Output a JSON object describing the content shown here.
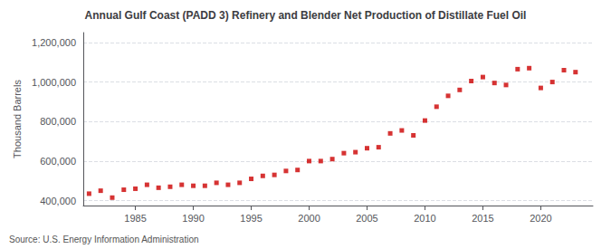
{
  "chart_data": {
    "type": "scatter",
    "title": "Annual Gulf Coast (PADD 3) Refinery and Blender Net Production of Distillate Fuel Oil",
    "ylabel": "Thousand Barrels",
    "annotation": "Source: U.S. Energy Information Administration",
    "x": [
      1981,
      1982,
      1983,
      1984,
      1985,
      1986,
      1987,
      1988,
      1989,
      1990,
      1991,
      1992,
      1993,
      1994,
      1995,
      1996,
      1997,
      1998,
      1999,
      2000,
      2001,
      2002,
      2003,
      2004,
      2005,
      2006,
      2007,
      2008,
      2009,
      2010,
      2011,
      2012,
      2013,
      2014,
      2015,
      2016,
      2017,
      2018,
      2019,
      2020,
      2021,
      2022,
      2023
    ],
    "values": [
      435000,
      450000,
      415000,
      455000,
      460000,
      480000,
      465000,
      470000,
      480000,
      475000,
      475000,
      490000,
      480000,
      490000,
      510000,
      525000,
      530000,
      550000,
      555000,
      600000,
      600000,
      610000,
      640000,
      645000,
      665000,
      670000,
      740000,
      755000,
      730000,
      805000,
      875000,
      930000,
      960000,
      1005000,
      1025000,
      995000,
      985000,
      1065000,
      1070000,
      970000,
      1000000,
      1060000,
      1050000
    ],
    "color": "#cc0000",
    "marker": "square",
    "xlim": [
      1980.5,
      2024.5
    ],
    "xticks": [
      1985,
      1990,
      1995,
      2000,
      2005,
      2010,
      2015,
      2020
    ],
    "ylim": [
      375000,
      1250000
    ],
    "yticks": [
      {
        "value": 400000,
        "label": "400,000"
      },
      {
        "value": 600000,
        "label": "600,000"
      },
      {
        "value": 800000,
        "label": "800,000"
      },
      {
        "value": 1000000,
        "label": "1,000,000"
      },
      {
        "value": 1200000,
        "label": "1,200,000"
      }
    ],
    "grid": true
  }
}
